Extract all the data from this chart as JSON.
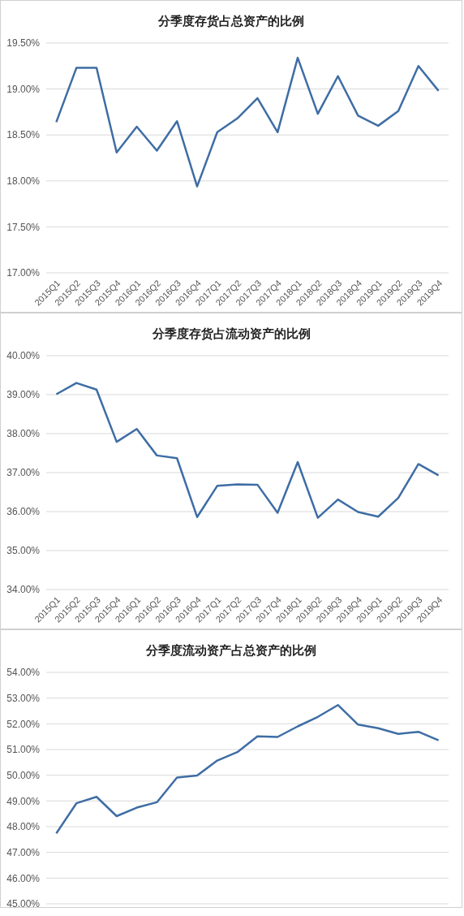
{
  "chart_data": [
    {
      "type": "line",
      "title": "分季度存货占总资产的比例",
      "categories": [
        "2015Q1",
        "2015Q2",
        "2015Q3",
        "2015Q4",
        "2016Q1",
        "2016Q2",
        "2016Q3",
        "2016Q4",
        "2017Q1",
        "2017Q2",
        "2017Q3",
        "2017Q4",
        "2018Q1",
        "2018Q2",
        "2018Q3",
        "2018Q4",
        "2019Q1",
        "2019Q2",
        "2019Q3",
        "2019Q4"
      ],
      "series": [
        {
          "color": "#3e6da4",
          "values": [
            18.64,
            19.23,
            19.23,
            18.31,
            18.59,
            18.33,
            18.65,
            17.94,
            18.53,
            18.68,
            18.9,
            18.53,
            19.34,
            18.73,
            19.14,
            18.71,
            18.6,
            18.76,
            19.25,
            18.98
          ]
        }
      ],
      "ylim": [
        17,
        19.5
      ],
      "yticks": [
        {
          "value": 17,
          "label": "17.00%"
        },
        {
          "value": 17.5,
          "label": "17.50%"
        },
        {
          "value": 18,
          "label": "18.00%"
        },
        {
          "value": 18.5,
          "label": "18.50%"
        },
        {
          "value": 19,
          "label": "19.00%"
        },
        {
          "value": 19.5,
          "label": "19.50%"
        }
      ],
      "grid": "y",
      "legend": false,
      "marker": "none",
      "line_style": "solid"
    },
    {
      "type": "line",
      "title": "分季度存货占流动资产的比例",
      "categories": [
        "2015Q1",
        "2015Q2",
        "2015Q3",
        "2015Q4",
        "2016Q1",
        "2016Q2",
        "2016Q3",
        "2016Q4",
        "2017Q1",
        "2017Q2",
        "2017Q3",
        "2017Q4",
        "2018Q1",
        "2018Q2",
        "2018Q3",
        "2018Q4",
        "2019Q1",
        "2019Q2",
        "2019Q3",
        "2019Q4"
      ],
      "series": [
        {
          "color": "#3e6da4",
          "values": [
            39.01,
            39.3,
            39.13,
            37.79,
            38.12,
            37.44,
            37.37,
            35.86,
            36.66,
            36.7,
            36.69,
            35.97,
            37.27,
            35.84,
            36.31,
            35.99,
            35.87,
            36.35,
            37.22,
            36.93
          ]
        }
      ],
      "ylim": [
        34,
        40
      ],
      "yticks": [
        {
          "value": 34,
          "label": "34.00%"
        },
        {
          "value": 35,
          "label": "35.00%"
        },
        {
          "value": 36,
          "label": "36.00%"
        },
        {
          "value": 37,
          "label": "37.00%"
        },
        {
          "value": 38,
          "label": "38.00%"
        },
        {
          "value": 39,
          "label": "39.00%"
        },
        {
          "value": 40,
          "label": "40.00%"
        }
      ],
      "grid": "y",
      "legend": false,
      "marker": "none",
      "line_style": "solid"
    },
    {
      "type": "line",
      "title": "分季度流动资产占总资产的比例",
      "categories": [
        null,
        null,
        null,
        null,
        null,
        null,
        null,
        null,
        null,
        null,
        null,
        null,
        null,
        null,
        null,
        null,
        null,
        null,
        null,
        null
      ],
      "series": [
        {
          "color": "#3e6da4",
          "values": [
            47.74,
            48.91,
            49.16,
            48.41,
            48.74,
            48.95,
            49.91,
            49.99,
            50.57,
            50.9,
            51.51,
            51.49,
            51.9,
            52.27,
            52.73,
            51.97,
            51.83,
            51.61,
            51.69,
            51.36
          ]
        }
      ],
      "ylim": [
        45,
        54
      ],
      "yticks": [
        {
          "value": 45,
          "label": "45.00%"
        },
        {
          "value": 46,
          "label": "46.00%"
        },
        {
          "value": 47,
          "label": "47.00%"
        },
        {
          "value": 48,
          "label": "48.00%"
        },
        {
          "value": 49,
          "label": "49.00%"
        },
        {
          "value": 50,
          "label": "50.00%"
        },
        {
          "value": 51,
          "label": "51.00%"
        },
        {
          "value": 52,
          "label": "52.00%"
        },
        {
          "value": 53,
          "label": "53.00%"
        },
        {
          "value": 54,
          "label": "54.00%"
        }
      ],
      "grid": "y",
      "legend": false,
      "marker": "none",
      "line_style": "solid",
      "tick_labels": "y"
    }
  ]
}
